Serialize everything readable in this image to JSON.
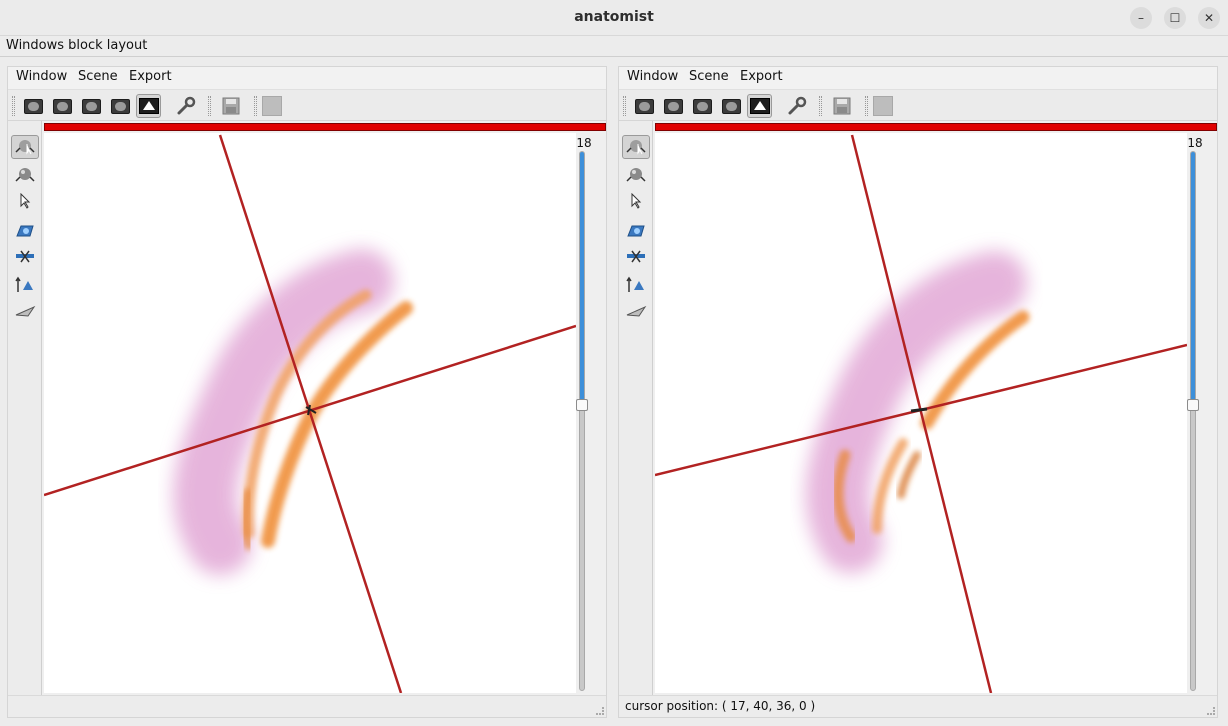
{
  "app": {
    "title": "anatomist"
  },
  "window_controls": {
    "minimize": "–",
    "maximize": "☐",
    "close": "✕"
  },
  "layout_label": "Windows block layout",
  "windows": [
    {
      "menu": [
        "Window",
        "Scene",
        "Export"
      ],
      "slider": {
        "value": "18",
        "level": 0.47
      },
      "status": ""
    },
    {
      "menu": [
        "Window",
        "Scene",
        "Export"
      ],
      "slider": {
        "value": "18",
        "level": 0.47
      },
      "status": "cursor position: ( 17, 40, 36, 0 )"
    }
  ],
  "icons": {
    "toolbar": [
      "axial-view-icon",
      "coronal-view-icon",
      "sagittal-view-icon",
      "oblique-view-icon",
      "3d-view-icon",
      "wrench-icon",
      "save-icon",
      "color-square-icon"
    ],
    "controls": [
      "default-control-icon",
      "trackball-icon",
      "selection-arrow-icon",
      "volume-render-icon",
      "cut-plane-icon",
      "transform-icon",
      "flight-icon"
    ]
  },
  "colors": {
    "accent_red": "#e00000",
    "slider_blue": "#3d8fd9",
    "cursor_line": "#b22222"
  }
}
